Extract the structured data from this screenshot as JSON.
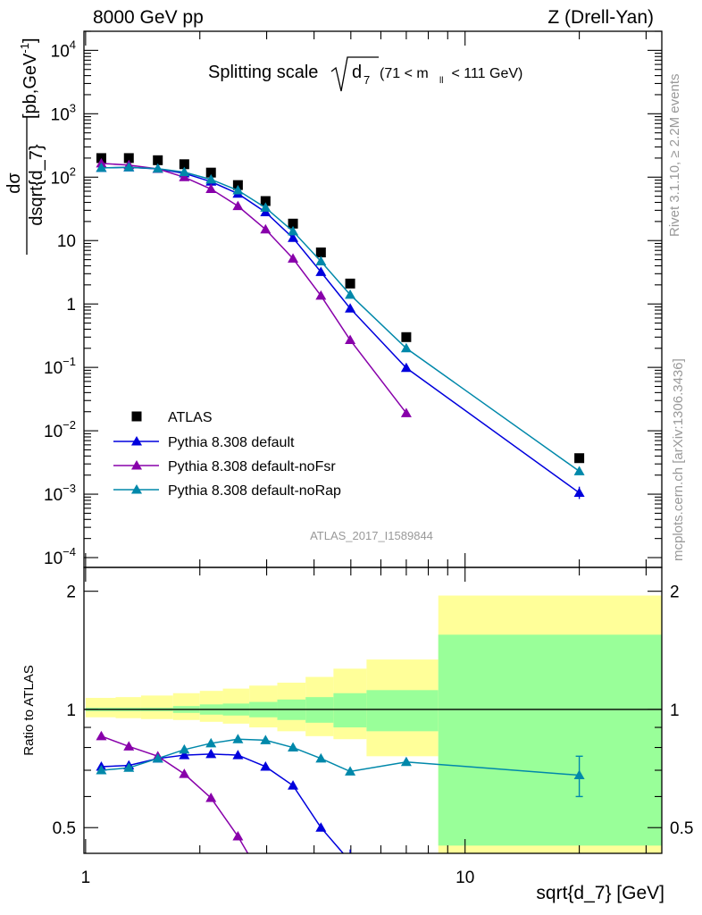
{
  "header": {
    "left": "8000 GeV pp",
    "right": "Z (Drell-Yan)"
  },
  "plot_title": {
    "main": "Splitting scale",
    "sqrt_arg": "d",
    "sqrt_sub": "7",
    "range_pre": "(71 < m",
    "range_sub": "ll",
    "range_post": " < 111 GeV)"
  },
  "side_text": {
    "rivet": "Rivet 3.1.10, ≥ 2.2M events",
    "mcplots": "mcplots.cern.ch [arXiv:1306.3436]"
  },
  "analysis_id": "ATLAS_2017_I1589844",
  "colors": {
    "data": "#000000",
    "default": "#0000dd",
    "noFsr": "#8800aa",
    "noRap": "#0088aa",
    "band_inner": "#99ff99",
    "band_outer": "#ffff99"
  },
  "chart_data": [
    {
      "type": "scatter",
      "panel": "main",
      "xlabel": "sqrt{d_7} [GeV]",
      "ylabel_num": "dσ",
      "ylabel_den": "dsqrt{d_7}",
      "ylabel_unit": "[pb,GeV",
      "ylabel_unit_sup": "-1",
      "ylabel_unit_close": "]",
      "x_scale": "log",
      "y_scale": "log",
      "xlim": [
        0.99,
        33
      ],
      "ylim": [
        7e-05,
        20000
      ],
      "x_ticks": [
        {
          "v": 1,
          "label": "1"
        },
        {
          "v": 10,
          "label": "10"
        }
      ],
      "y_ticks": [
        {
          "v": 0.0001,
          "base": "10",
          "exp": "−4"
        },
        {
          "v": 0.001,
          "base": "10",
          "exp": "−3"
        },
        {
          "v": 0.01,
          "base": "10",
          "exp": "−2"
        },
        {
          "v": 0.1,
          "base": "10",
          "exp": "−1"
        },
        {
          "v": 1,
          "base": "1",
          "exp": ""
        },
        {
          "v": 10,
          "base": "10",
          "exp": ""
        },
        {
          "v": 100,
          "base": "10",
          "exp": "2"
        },
        {
          "v": 1000,
          "base": "10",
          "exp": "3"
        },
        {
          "v": 10000,
          "base": "10",
          "exp": "4"
        }
      ],
      "legend_position": "lower-left",
      "series": [
        {
          "name": "ATLAS",
          "key": "data",
          "marker": "square",
          "x": [
            1.1,
            1.3,
            1.55,
            1.82,
            2.14,
            2.52,
            2.98,
            3.52,
            4.17,
            4.98,
            7.0,
            20.0
          ],
          "y": [
            200,
            200,
            185,
            160,
            118,
            75,
            42,
            18.5,
            6.5,
            2.1,
            0.3,
            0.0037
          ]
        },
        {
          "name": "Pythia 8.308 default",
          "key": "default",
          "marker": "triangle",
          "x": [
            1.1,
            1.3,
            1.55,
            1.82,
            2.14,
            2.52,
            2.98,
            3.52,
            4.17,
            4.98,
            7.0,
            20.0
          ],
          "y": [
            140,
            143,
            135,
            115,
            85,
            55,
            28,
            11.0,
            3.2,
            0.85,
            0.098,
            0.00105
          ]
        },
        {
          "name": "Pythia 8.308 default-noFsr",
          "key": "noFsr",
          "marker": "triangle",
          "x": [
            1.1,
            1.3,
            1.55,
            1.82,
            2.14,
            2.52,
            2.98,
            3.52,
            4.17,
            4.98,
            7.0
          ],
          "y": [
            165,
            155,
            135,
            100,
            65,
            35,
            15,
            5.2,
            1.35,
            0.27,
            0.019
          ]
        },
        {
          "name": "Pythia 8.308 default-noRap",
          "key": "noRap",
          "marker": "triangle",
          "x": [
            1.1,
            1.3,
            1.55,
            1.82,
            2.14,
            2.52,
            2.98,
            3.52,
            4.17,
            4.98,
            7.0,
            20.0
          ],
          "y": [
            140,
            143,
            136,
            120,
            92,
            62,
            33,
            14,
            4.7,
            1.4,
            0.2,
            0.0023
          ]
        }
      ]
    },
    {
      "type": "line",
      "panel": "ratio",
      "ylabel": "Ratio to ATLAS",
      "x_scale": "log",
      "xlim": [
        0.99,
        33
      ],
      "ylim": [
        0.43,
        2.3
      ],
      "y_ticks": [
        {
          "v": 0.5,
          "label": "0.5"
        },
        {
          "v": 1,
          "label": "1"
        },
        {
          "v": 2,
          "label": "2"
        }
      ],
      "bands": {
        "edges": [
          1.0,
          1.2,
          1.4,
          1.7,
          2.0,
          2.3,
          2.7,
          3.2,
          3.8,
          4.5,
          5.5,
          8.5,
          33
        ],
        "inner_lo": [
          0.99,
          0.99,
          0.99,
          0.98,
          0.97,
          0.965,
          0.955,
          0.94,
          0.925,
          0.9,
          0.88,
          0.45
        ],
        "inner_hi": [
          1.01,
          1.01,
          1.01,
          1.02,
          1.03,
          1.035,
          1.045,
          1.06,
          1.075,
          1.1,
          1.12,
          1.55
        ],
        "outer_lo": [
          0.955,
          0.95,
          0.945,
          0.94,
          0.93,
          0.92,
          0.9,
          0.88,
          0.855,
          0.84,
          0.76,
          0.43
        ],
        "outer_hi": [
          1.07,
          1.075,
          1.085,
          1.1,
          1.115,
          1.13,
          1.15,
          1.17,
          1.21,
          1.27,
          1.34,
          1.95
        ]
      },
      "series": [
        {
          "name": "Pythia 8.308 default",
          "key": "default",
          "x": [
            1.1,
            1.3,
            1.55,
            1.82,
            2.14,
            2.52,
            2.98,
            3.52,
            4.17,
            4.98
          ],
          "y": [
            0.715,
            0.72,
            0.75,
            0.765,
            0.77,
            0.765,
            0.715,
            0.64,
            0.5,
            0.41
          ]
        },
        {
          "name": "Pythia 8.308 default-noFsr",
          "key": "noFsr",
          "x": [
            1.1,
            1.3,
            1.55,
            1.82,
            2.14,
            2.52,
            2.98
          ],
          "y": [
            0.855,
            0.805,
            0.76,
            0.685,
            0.595,
            0.475,
            0.36
          ]
        },
        {
          "name": "Pythia 8.308 default-noRap",
          "key": "noRap",
          "x": [
            1.1,
            1.3,
            1.55,
            1.82,
            2.14,
            2.52,
            2.98,
            3.52,
            4.17,
            4.98,
            7.0,
            20.0
          ],
          "y": [
            0.7,
            0.71,
            0.75,
            0.79,
            0.82,
            0.84,
            0.835,
            0.8,
            0.75,
            0.695,
            0.735,
            0.68
          ],
          "err_last": 0.08
        }
      ]
    }
  ]
}
